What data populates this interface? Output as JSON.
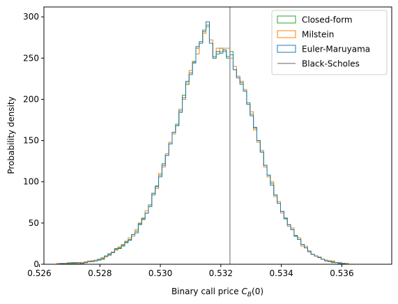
{
  "chart_data": {
    "type": "histogram",
    "xlabel_main": "Binary call price ",
    "xlabel_sym": "C",
    "xlabel_sub": "B",
    "xlabel_tail": "(0)",
    "ylabel": "Probability density",
    "xlim": [
      0.52615,
      0.53765
    ],
    "ylim": [
      0,
      312
    ],
    "xticks": [
      0.526,
      0.528,
      0.53,
      0.532,
      0.534,
      0.536
    ],
    "xtick_labels": [
      "0.526",
      "0.528",
      "0.530",
      "0.532",
      "0.534",
      "0.536"
    ],
    "yticks": [
      0,
      50,
      100,
      150,
      200,
      250,
      300
    ],
    "ytick_labels": [
      "0",
      "50",
      "100",
      "150",
      "200",
      "250",
      "300"
    ],
    "bin_start": 0.52647,
    "bin_width": 0.000112,
    "legend_position": "upper right",
    "black_scholes": 0.5323,
    "series": [
      {
        "name": "Closed-form",
        "color": "#2ca02c",
        "values": [
          0,
          1,
          1,
          0,
          1,
          2,
          1,
          1,
          2,
          2,
          3,
          4,
          5,
          5,
          7,
          10,
          12,
          14,
          18,
          20,
          22,
          26,
          30,
          36,
          40,
          48,
          56,
          62,
          72,
          84,
          95,
          108,
          122,
          132,
          146,
          160,
          170,
          184,
          205,
          218,
          232,
          246,
          262,
          270,
          282,
          290,
          268,
          252,
          255,
          262,
          258,
          250,
          258,
          236,
          228,
          218,
          210,
          196,
          182,
          165,
          150,
          136,
          120,
          108,
          98,
          84,
          74,
          64,
          55,
          48,
          42,
          35,
          30,
          24,
          20,
          16,
          12,
          10,
          8,
          6,
          5,
          4,
          3,
          2,
          2,
          1,
          1,
          0,
          0
        ]
      },
      {
        "name": "Milstein",
        "color": "#ff7f0e",
        "values": [
          0,
          1,
          0,
          1,
          2,
          1,
          2,
          1,
          2,
          3,
          4,
          3,
          5,
          6,
          8,
          9,
          13,
          15,
          17,
          21,
          24,
          28,
          32,
          34,
          42,
          50,
          54,
          65,
          70,
          86,
          92,
          110,
          118,
          134,
          148,
          158,
          168,
          188,
          200,
          220,
          235,
          245,
          255,
          268,
          280,
          288,
          272,
          250,
          262,
          258,
          262,
          262,
          250,
          240,
          228,
          222,
          212,
          194,
          185,
          163,
          148,
          138,
          118,
          106,
          100,
          82,
          76,
          62,
          56,
          46,
          44,
          34,
          32,
          22,
          22,
          15,
          12,
          10,
          9,
          6,
          5,
          3,
          4,
          2,
          1,
          1,
          1,
          0,
          0
        ]
      },
      {
        "name": "Euler-Maruyama",
        "color": "#1f77b4",
        "values": [
          0,
          0,
          1,
          1,
          1,
          1,
          2,
          2,
          1,
          2,
          3,
          4,
          4,
          6,
          6,
          10,
          11,
          14,
          19,
          19,
          23,
          27,
          29,
          36,
          38,
          49,
          55,
          62,
          70,
          86,
          94,
          106,
          120,
          132,
          146,
          160,
          168,
          186,
          202,
          222,
          230,
          244,
          264,
          268,
          284,
          294,
          268,
          250,
          258,
          256,
          260,
          252,
          254,
          236,
          226,
          220,
          210,
          194,
          180,
          166,
          150,
          136,
          120,
          108,
          96,
          84,
          74,
          64,
          56,
          48,
          42,
          34,
          30,
          24,
          20,
          16,
          12,
          10,
          8,
          6,
          4,
          4,
          2,
          2,
          1,
          1,
          0,
          0,
          0
        ]
      }
    ]
  },
  "legend": {
    "items": [
      {
        "label": "Closed-form",
        "color": "#2ca02c",
        "kind": "patch"
      },
      {
        "label": "Milstein",
        "color": "#ff7f0e",
        "kind": "patch"
      },
      {
        "label": "Euler-Maruyama",
        "color": "#1f77b4",
        "kind": "patch"
      },
      {
        "label": "Black-Scholes",
        "color": "#999999",
        "kind": "line"
      }
    ]
  }
}
